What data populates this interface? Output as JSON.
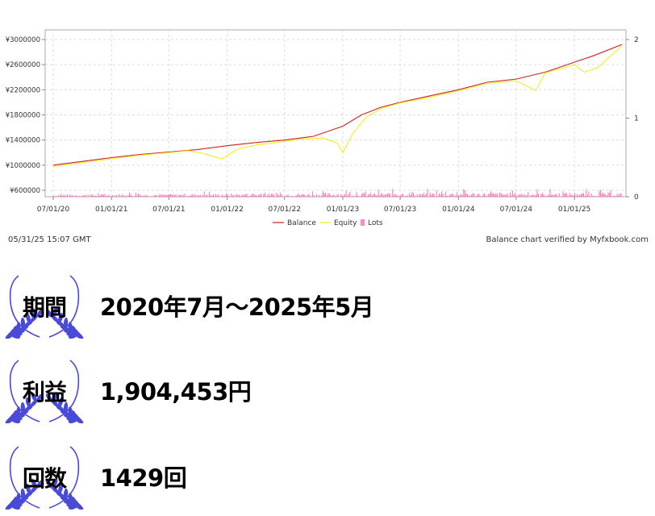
{
  "chart_data": {
    "type": "line",
    "x_ticks": [
      "07/01/20",
      "01/01/21",
      "07/01/21",
      "01/01/22",
      "07/01/22",
      "01/01/23",
      "07/01/23",
      "01/01/24",
      "07/01/24",
      "01/01/25"
    ],
    "y_ticks_left": [
      "¥3000000",
      "¥2600000",
      "¥2200000",
      "¥1800000",
      "¥1400000",
      "¥1000000",
      "¥600000"
    ],
    "y_ticks_right": [
      "2",
      "1",
      "0"
    ],
    "ylim": [
      600000,
      3000000
    ],
    "y2lim": [
      0,
      2
    ],
    "grid": true,
    "legend_position": "bottom",
    "series": [
      {
        "name": "Balance",
        "color": "#cc2222",
        "x": [
          "2020-07-01",
          "2020-10-01",
          "2021-01-01",
          "2021-04-01",
          "2021-07-01",
          "2021-10-01",
          "2022-01-01",
          "2022-04-01",
          "2022-07-01",
          "2022-10-01",
          "2023-01-01",
          "2023-03-01",
          "2023-05-01",
          "2023-07-01",
          "2023-10-01",
          "2024-01-01",
          "2024-04-01",
          "2024-07-01",
          "2024-10-01",
          "2025-01-01",
          "2025-03-01",
          "2025-05-31"
        ],
        "values": [
          1000000,
          1060000,
          1120000,
          1170000,
          1210000,
          1250000,
          1310000,
          1360000,
          1400000,
          1460000,
          1620000,
          1800000,
          1920000,
          2000000,
          2100000,
          2200000,
          2320000,
          2370000,
          2480000,
          2640000,
          2740000,
          2920000
        ]
      },
      {
        "name": "Equity",
        "color": "#eeee22",
        "x": [
          "2020-07-01",
          "2020-10-01",
          "2021-01-01",
          "2021-04-01",
          "2021-07-01",
          "2021-09-01",
          "2021-10-15",
          "2021-12-15",
          "2022-02-01",
          "2022-04-01",
          "2022-07-01",
          "2022-09-01",
          "2022-11-01",
          "2022-12-15",
          "2023-01-01",
          "2023-02-01",
          "2023-03-15",
          "2023-05-01",
          "2023-07-01",
          "2023-10-01",
          "2024-01-01",
          "2024-04-01",
          "2024-07-01",
          "2024-09-01",
          "2024-10-01",
          "2025-01-01",
          "2025-02-01",
          "2025-03-15",
          "2025-05-31"
        ],
        "values": [
          980000,
          1040000,
          1100000,
          1160000,
          1200000,
          1230000,
          1190000,
          1100000,
          1250000,
          1320000,
          1380000,
          1420000,
          1430000,
          1350000,
          1200000,
          1500000,
          1760000,
          1900000,
          1990000,
          2080000,
          2180000,
          2300000,
          2340000,
          2190000,
          2470000,
          2600000,
          2480000,
          2550000,
          2900000
        ]
      },
      {
        "name": "Lots",
        "color": "#ff55aa",
        "axis": "right",
        "values_range": [
          0,
          0.1
        ]
      }
    ]
  },
  "footer": {
    "timestamp": "05/31/25 15:07 GMT",
    "credit": "Balance chart verified by Myfxbook.com"
  },
  "stats": [
    {
      "label": "期間",
      "value": "2020年7月〜2025年5月"
    },
    {
      "label": "利益",
      "value": "1,904,453円"
    },
    {
      "label": "回数",
      "value": "1429回"
    }
  ],
  "colors": {
    "laurel": "#4a4ad8",
    "grid": "#dddddd",
    "axis": "#888888"
  },
  "icons": [
    "laurel-wreath-icon"
  ]
}
